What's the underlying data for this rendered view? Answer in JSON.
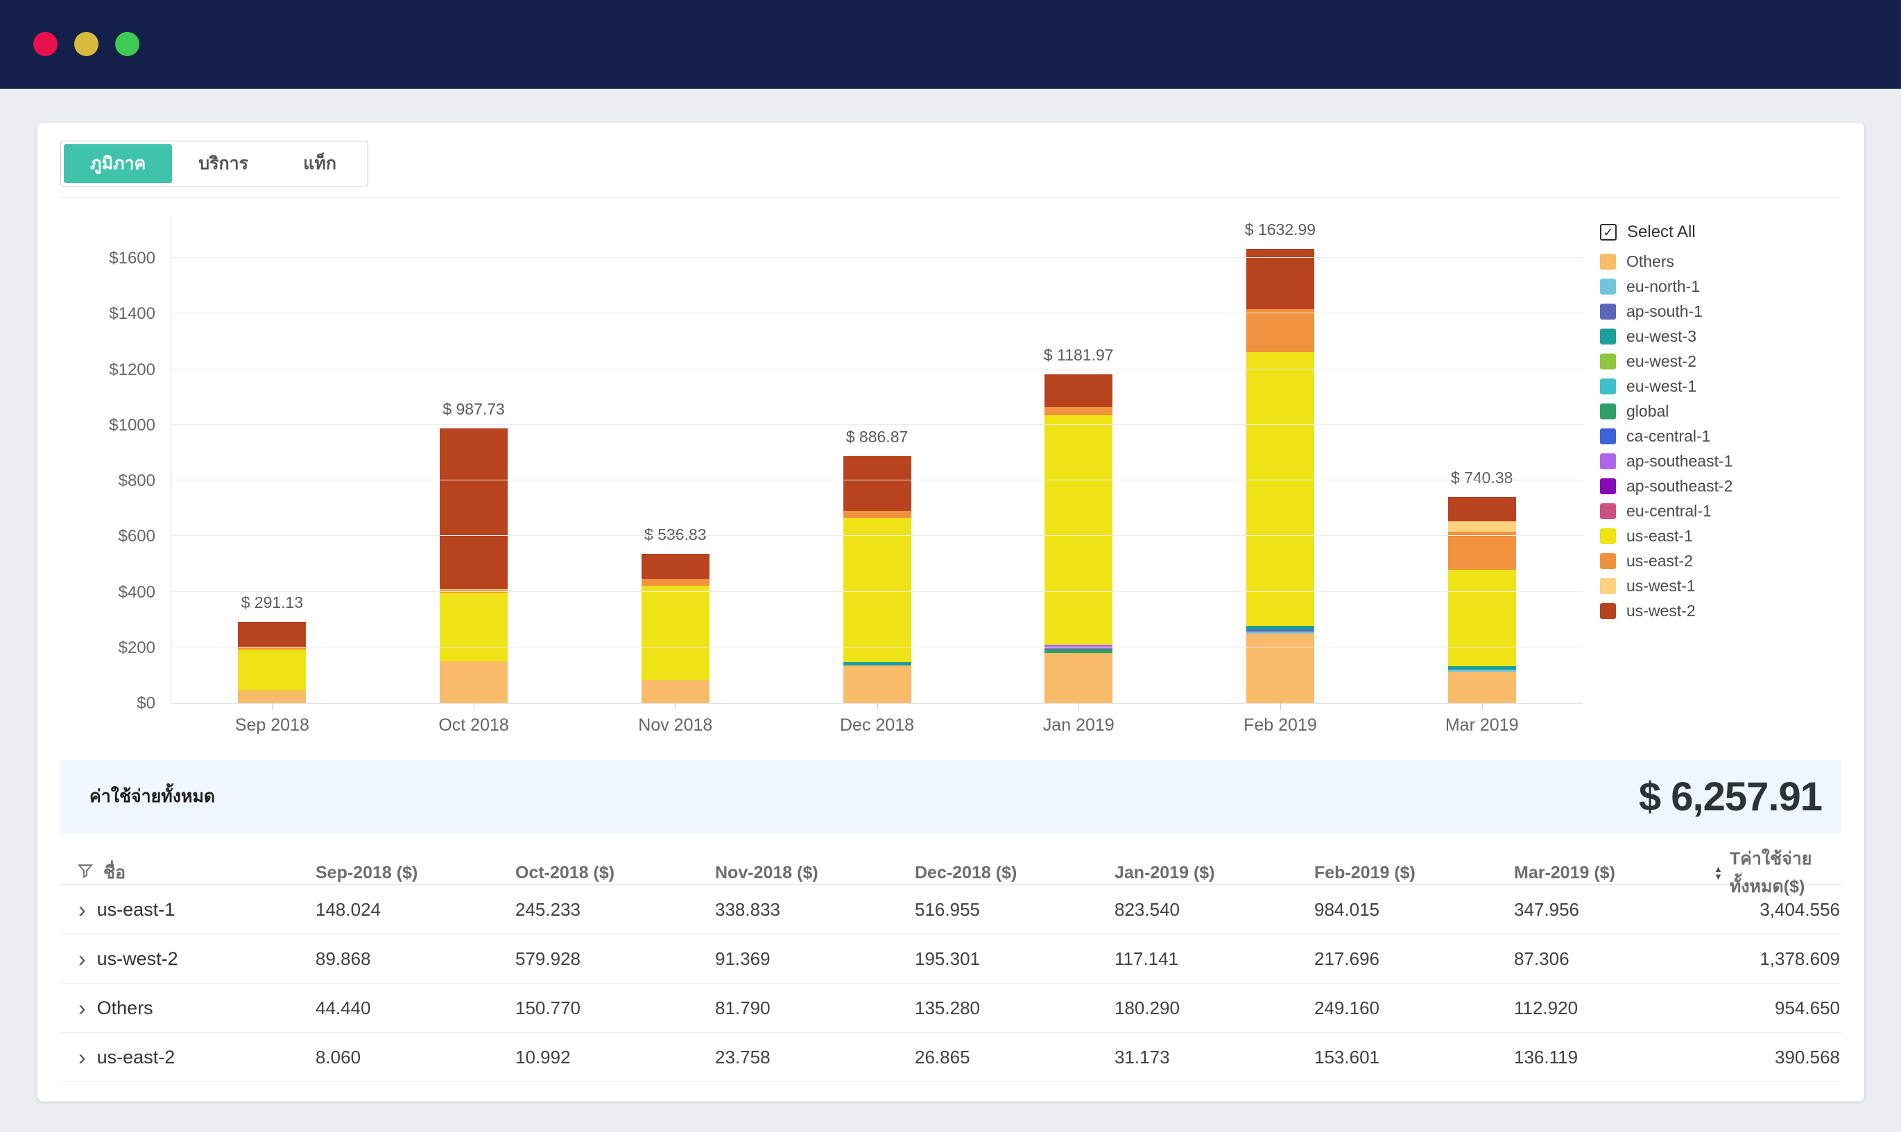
{
  "window": {
    "traffic_lights": [
      {
        "name": "close",
        "color": "#e8114b"
      },
      {
        "name": "minimize",
        "color": "#d8ba3c"
      },
      {
        "name": "zoom",
        "color": "#3fcb52"
      }
    ],
    "titlebar_color": "#14204a"
  },
  "tabs": [
    {
      "label": "ภูมิภาค",
      "active": true
    },
    {
      "label": "บริการ",
      "active": false
    },
    {
      "label": "แท็ก",
      "active": false
    }
  ],
  "accent_color": "#40c3ab",
  "chart_data": {
    "type": "bar",
    "stacked": true,
    "grid": true,
    "legend_position": "right",
    "categories": [
      "Sep 2018",
      "Oct 2018",
      "Nov 2018",
      "Dec 2018",
      "Jan 2019",
      "Feb 2019",
      "Mar 2019"
    ],
    "totals_labels": [
      "$ 291.13",
      "$ 987.73",
      "$ 536.83",
      "$ 886.87",
      "$ 1181.97",
      "$ 1632.99",
      "$ 740.38"
    ],
    "totals": [
      291.13,
      987.73,
      536.83,
      886.87,
      1181.97,
      1632.99,
      740.38
    ],
    "y_axis": {
      "min": 0,
      "max": 1600,
      "step": 200,
      "tick_labels": [
        "$0",
        "$200",
        "$400",
        "$600",
        "$800",
        "$1000",
        "$1200",
        "$1400",
        "$1600"
      ]
    },
    "legend": {
      "select_all": "Select All"
    },
    "series": [
      {
        "name": "Others",
        "color": "#f8bb69",
        "pattern": true,
        "values": [
          44.44,
          150.77,
          81.79,
          135.28,
          180.29,
          249.16,
          112.92
        ]
      },
      {
        "name": "eu-north-1",
        "color": "#70c5dd",
        "pattern": false,
        "values": [
          0,
          0,
          0,
          0,
          0,
          8.0,
          6.0
        ]
      },
      {
        "name": "ap-south-1",
        "color": "#5b66b7",
        "pattern": true,
        "values": [
          0,
          0,
          0,
          0,
          0,
          7.0,
          0
        ]
      },
      {
        "name": "eu-west-3",
        "color": "#1d9f9a",
        "pattern": false,
        "values": [
          0,
          0,
          1.0,
          12.46,
          0,
          13.51,
          12.0
        ]
      },
      {
        "name": "eu-west-2",
        "color": "#8ec73f",
        "pattern": false,
        "values": [
          0,
          0,
          0,
          0,
          0,
          0,
          0
        ]
      },
      {
        "name": "eu-west-1",
        "color": "#3fc0ca",
        "pattern": false,
        "values": [
          0,
          0,
          0,
          0,
          0,
          0,
          0
        ]
      },
      {
        "name": "global",
        "color": "#2f9e68",
        "pattern": true,
        "values": [
          0,
          0,
          0,
          0,
          14.0,
          0,
          0
        ]
      },
      {
        "name": "ca-central-1",
        "color": "#3c64d8",
        "pattern": false,
        "values": [
          0,
          0,
          0,
          0,
          0,
          0,
          0
        ]
      },
      {
        "name": "ap-southeast-1",
        "color": "#ae66e8",
        "pattern": true,
        "values": [
          0,
          0,
          0,
          0,
          15.83,
          0,
          0
        ]
      },
      {
        "name": "ap-southeast-2",
        "color": "#8709b6",
        "pattern": false,
        "values": [
          0,
          0,
          0,
          0,
          0,
          0,
          0
        ]
      },
      {
        "name": "eu-central-1",
        "color": "#cb5183",
        "pattern": false,
        "values": [
          0,
          0,
          0,
          0,
          0,
          0,
          0
        ]
      },
      {
        "name": "us-east-1",
        "color": "#eee316",
        "pattern": false,
        "values": [
          148.024,
          245.233,
          338.833,
          516.955,
          823.54,
          984.015,
          347.956
        ]
      },
      {
        "name": "us-east-2",
        "color": "#f0923e",
        "pattern": true,
        "values": [
          8.06,
          10.992,
          23.758,
          26.865,
          31.173,
          153.601,
          136.119
        ]
      },
      {
        "name": "us-west-1",
        "color": "#fcd27f",
        "pattern": true,
        "values": [
          0.74,
          0.81,
          0.08,
          0,
          0,
          0,
          38.08
        ]
      },
      {
        "name": "us-west-2",
        "color": "#b8431f",
        "pattern": false,
        "values": [
          89.868,
          579.928,
          91.369,
          195.301,
          117.141,
          217.696,
          87.306
        ]
      }
    ]
  },
  "summary": {
    "label": "ค่าใช้จ่ายทั้งหมด",
    "total": "$ 6,257.91"
  },
  "table": {
    "name_header": "ชื่อ",
    "month_columns": [
      "Sep-2018 ($)",
      "Oct-2018 ($)",
      "Nov-2018 ($)",
      "Dec-2018 ($)",
      "Jan-2019 ($)",
      "Feb-2019 ($)",
      "Mar-2019 ($)"
    ],
    "total_header": "Tค่าใช้จ่ายทั้งหมด($)",
    "rows": [
      {
        "name": "us-east-1",
        "values": [
          "148.024",
          "245.233",
          "338.833",
          "516.955",
          "823.540",
          "984.015",
          "347.956"
        ],
        "total": "3,404.556"
      },
      {
        "name": "us-west-2",
        "values": [
          "89.868",
          "579.928",
          "91.369",
          "195.301",
          "117.141",
          "217.696",
          "87.306"
        ],
        "total": "1,378.609"
      },
      {
        "name": "Others",
        "values": [
          "44.440",
          "150.770",
          "81.790",
          "135.280",
          "180.290",
          "249.160",
          "112.920"
        ],
        "total": "954.650"
      },
      {
        "name": "us-east-2",
        "values": [
          "8.060",
          "10.992",
          "23.758",
          "26.865",
          "31.173",
          "153.601",
          "136.119"
        ],
        "total": "390.568"
      }
    ]
  }
}
